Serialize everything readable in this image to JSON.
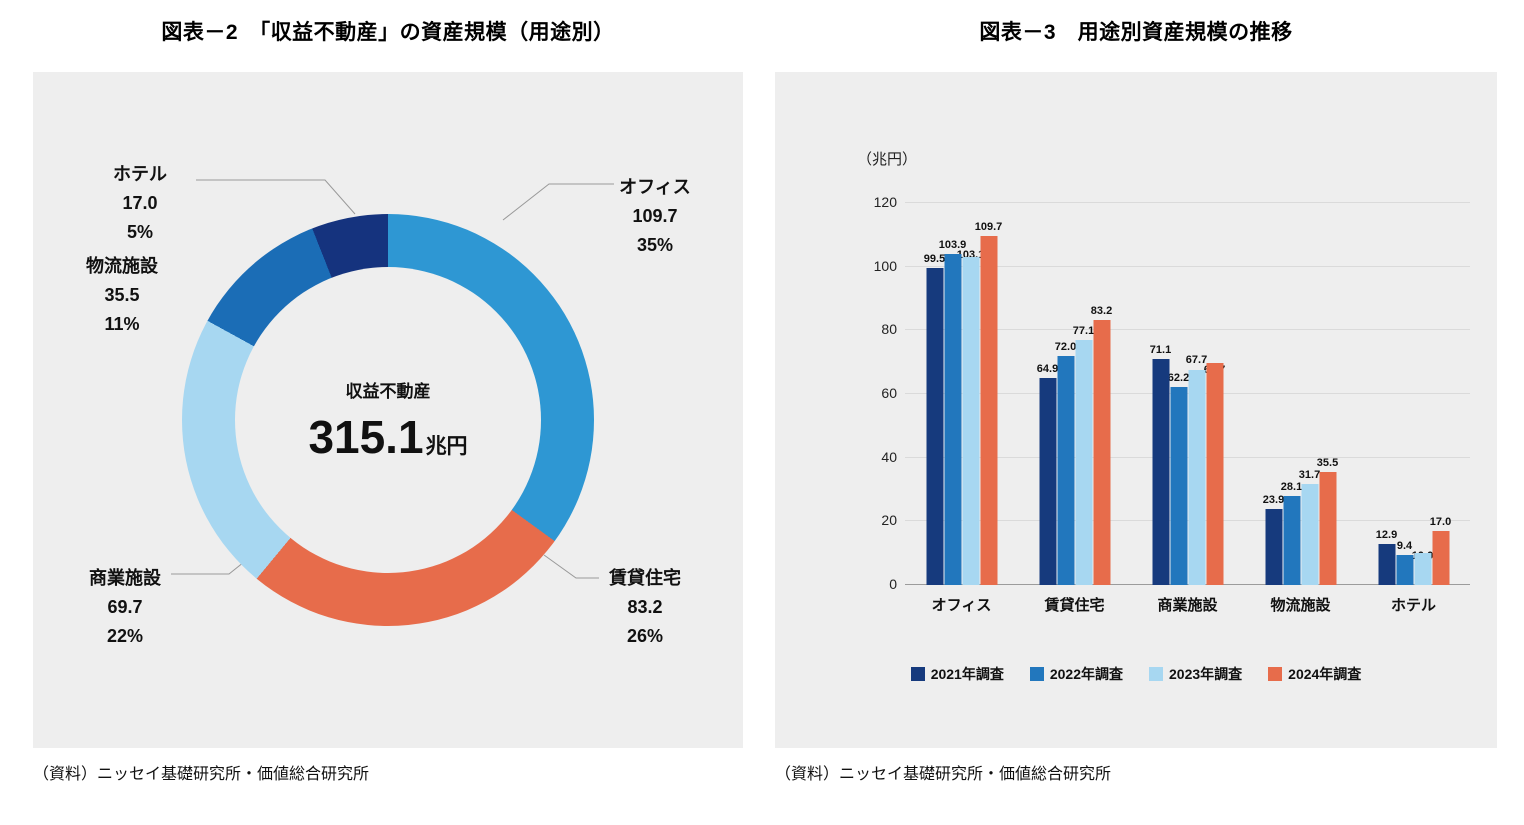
{
  "figures": {
    "left": {
      "title": "図表－2　「収益不動産」の資産規模（用途別）",
      "source": "（資料）ニッセイ基礎研究所・価値総合研究所"
    },
    "right": {
      "title": "図表－3　用途別資産規模の推移",
      "source": "（資料）ニッセイ基礎研究所・価値総合研究所"
    }
  },
  "chart_data": [
    {
      "type": "pie",
      "title": "「収益不動産」の資産規模（用途別）",
      "center": {
        "label": "収益不動産",
        "value": "315.1",
        "unit": "兆円"
      },
      "total": 315.1,
      "slices": [
        {
          "label": "オフィス",
          "value": 109.7,
          "value_label": "109.7",
          "pct": 35,
          "percent_label": "35%",
          "color": "#2e97d3"
        },
        {
          "label": "賃貸住宅",
          "value": 83.2,
          "value_label": "83.2",
          "pct": 26,
          "percent_label": "26%",
          "color": "#e76c4b"
        },
        {
          "label": "商業施設",
          "value": 69.7,
          "value_label": "69.7",
          "pct": 22,
          "percent_label": "22%",
          "color": "#a7d7f1"
        },
        {
          "label": "物流施設",
          "value": 35.5,
          "value_label": "35.5",
          "pct": 11,
          "percent_label": "11%",
          "color": "#1b6db6"
        },
        {
          "label": "ホテル",
          "value": 17.0,
          "value_label": "17.0",
          "pct": 5,
          "percent_label": "5%",
          "color": "#15337e"
        }
      ]
    },
    {
      "type": "bar",
      "title": "用途別資産規模の推移",
      "ylabel": "（兆円）",
      "ylim": [
        0,
        120
      ],
      "yticks": [
        0,
        20,
        40,
        60,
        80,
        100,
        120
      ],
      "grid": true,
      "legend_position": "bottom",
      "categories": [
        "オフィス",
        "賃貸住宅",
        "商業施設",
        "物流施設",
        "ホテル"
      ],
      "series": [
        {
          "name": "2021年調査",
          "color": "#163a7d",
          "values": [
            99.5,
            64.9,
            71.1,
            23.9,
            12.9
          ]
        },
        {
          "name": "2022年調査",
          "color": "#2277bd",
          "values": [
            103.9,
            72.0,
            62.2,
            28.1,
            9.4
          ]
        },
        {
          "name": "2023年調査",
          "color": "#a7d7f1",
          "values": [
            103.1,
            77.1,
            67.7,
            31.7,
            10.0
          ]
        },
        {
          "name": "2024年調査",
          "color": "#e76c4b",
          "values": [
            109.7,
            83.2,
            69.7,
            35.5,
            17.0
          ]
        }
      ]
    }
  ]
}
